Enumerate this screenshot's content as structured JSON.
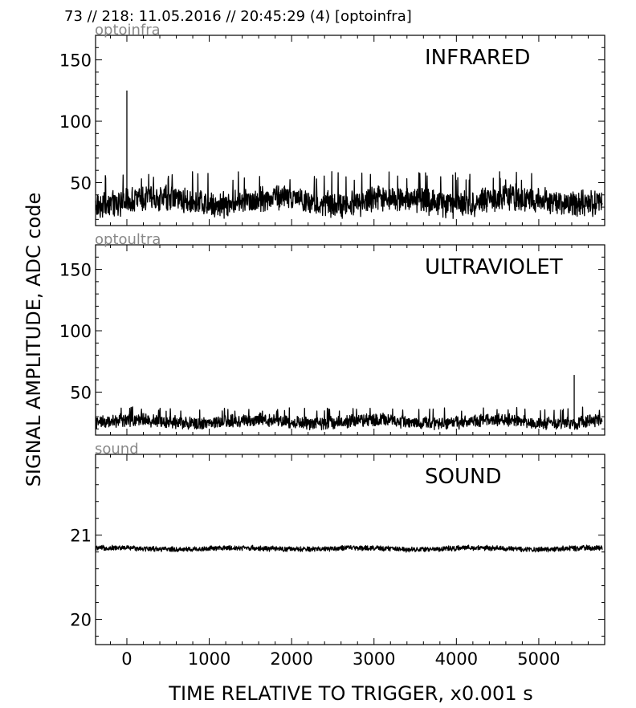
{
  "figure": {
    "title": "73 // 218:   11.05.2016 // 20:45:29 (4)  [optoinfra]",
    "xlabel": "TIME RELATIVE TO TRIGGER,   x0.001 s",
    "ylabel": "SIGNAL AMPLITUDE,  ADC code"
  },
  "chart_data": [
    {
      "type": "line",
      "tag": "optoinfra",
      "title": "INFRARED",
      "xlim": [
        -380,
        5800
      ],
      "ylim": [
        15,
        170
      ],
      "xticks": [
        0,
        1000,
        2000,
        3000,
        4000,
        5000
      ],
      "yticks": [
        50,
        100,
        150
      ],
      "ytick_labels": [
        "50",
        "100",
        "150"
      ],
      "x_range": [
        -380,
        5770
      ],
      "series": [
        {
          "baseline": 35,
          "noise_amplitude": 12,
          "spikes": [
            {
              "x": 0,
              "y": 125
            }
          ]
        }
      ]
    },
    {
      "type": "line",
      "tag": "optoultra",
      "title": "ULTRAVIOLET",
      "xlim": [
        -380,
        5800
      ],
      "ylim": [
        15,
        170
      ],
      "xticks": [
        0,
        1000,
        2000,
        3000,
        4000,
        5000
      ],
      "yticks": [
        50,
        100,
        150
      ],
      "ytick_labels": [
        "50",
        "100",
        "150"
      ],
      "x_range": [
        -380,
        5770
      ],
      "series": [
        {
          "baseline": 26,
          "noise_amplitude": 6,
          "spikes": [
            {
              "x": 5430,
              "y": 64
            }
          ]
        }
      ]
    },
    {
      "type": "line",
      "tag": "sound",
      "title": "SOUND",
      "xlim": [
        -380,
        5800
      ],
      "ylim": [
        19.7,
        21.96
      ],
      "xticks": [
        0,
        1000,
        2000,
        3000,
        4000,
        5000
      ],
      "yticks": [
        20,
        21
      ],
      "ytick_labels": [
        "20",
        "21"
      ],
      "x_range": [
        -380,
        5770
      ],
      "series": [
        {
          "baseline": 20.84,
          "noise_amplitude": 0.035,
          "spikes": []
        }
      ]
    }
  ],
  "xtick_labels": [
    "0",
    "1000",
    "2000",
    "3000",
    "4000",
    "5000"
  ]
}
